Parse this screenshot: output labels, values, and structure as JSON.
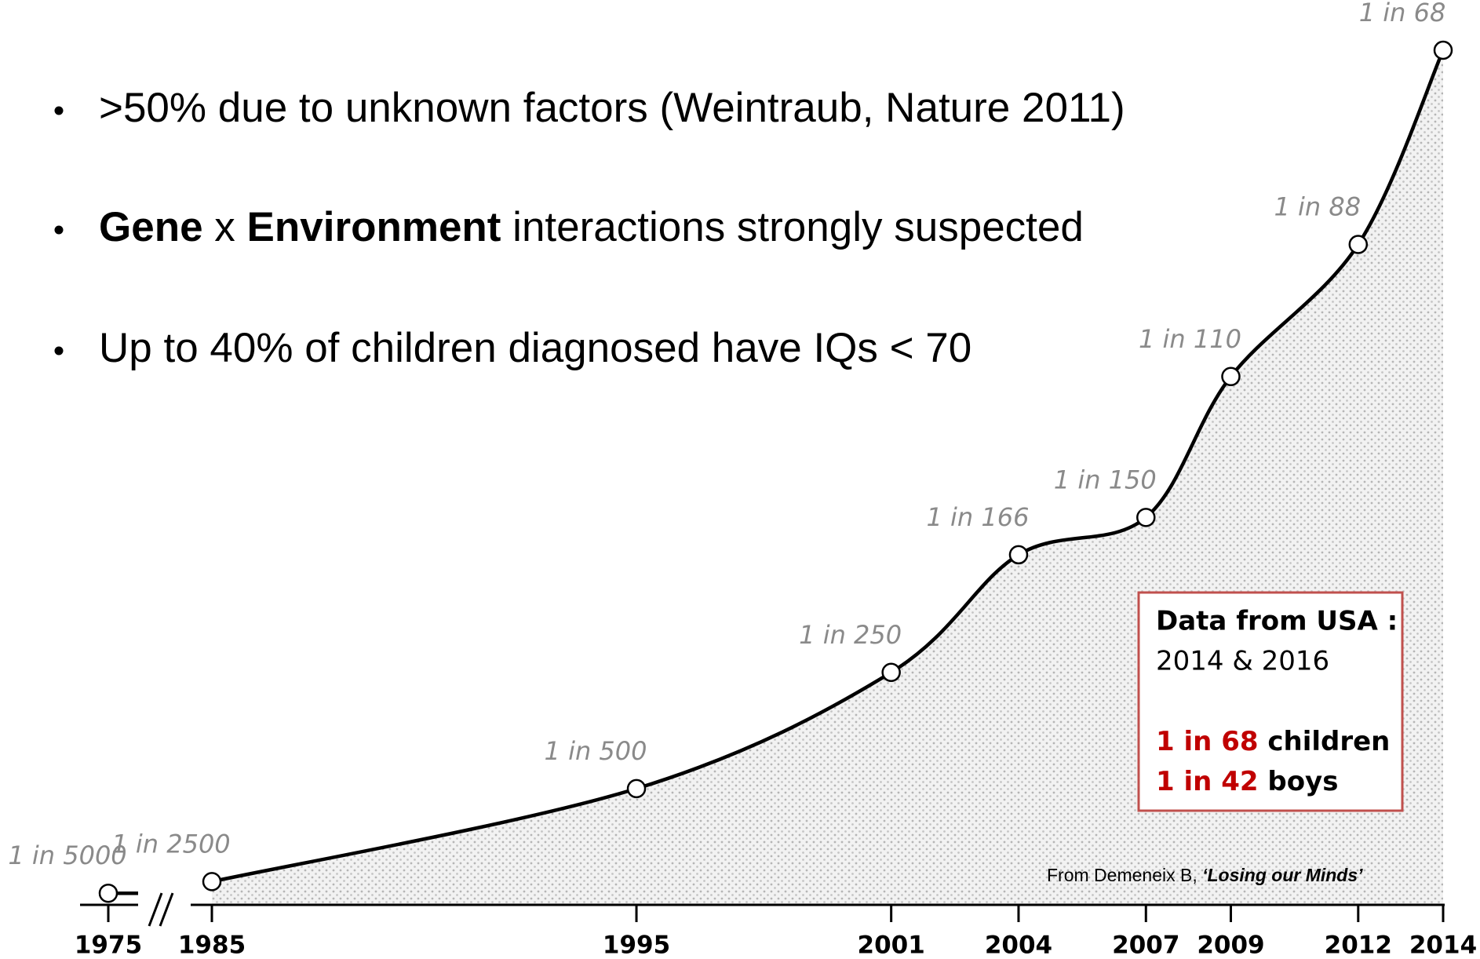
{
  "bullets": [
    {
      "segments": [
        {
          "text": ">50%  due to unknown factors (Weintraub, Nature 2011)",
          "bold": false
        }
      ]
    },
    {
      "segments": [
        {
          "text": "Gene",
          "bold": true
        },
        {
          "text": " x ",
          "bold": false
        },
        {
          "text": "Environment",
          "bold": true
        },
        {
          "text": " interactions strongly suspected",
          "bold": false
        }
      ]
    },
    {
      "segments": [
        {
          "text": "Up to 40% of children diagnosed have IQs < 70",
          "bold": false
        }
      ]
    }
  ],
  "box": {
    "heading": "Data from USA :",
    "years": "2014 & 2016",
    "line1": {
      "rate": "1 in 68",
      "rest": " children"
    },
    "line2": {
      "rate": "1 in 42",
      "rest": " boys"
    }
  },
  "source": {
    "prefix": "From Demeneix B, ",
    "book": "‘Losing our Minds’"
  },
  "chart_data": {
    "type": "line",
    "x": [
      1975,
      1985,
      1995,
      2001,
      2004,
      2007,
      2009,
      2012,
      2014
    ],
    "values": [
      5000,
      2500,
      500,
      250,
      166,
      150,
      110,
      88,
      68
    ],
    "value_labels": [
      "1 in 5000",
      "1 in 2500",
      "1 in 500",
      "1 in 250",
      "1 in 166",
      "1 in 150",
      "1 in 110",
      "1 in 88",
      "1 in 68"
    ],
    "xlim": [
      1985,
      2014
    ],
    "xticks": [
      1975,
      1985,
      1995,
      2001,
      2004,
      2007,
      2009,
      2012,
      2014
    ],
    "axis_break": true,
    "color": "#000000"
  }
}
